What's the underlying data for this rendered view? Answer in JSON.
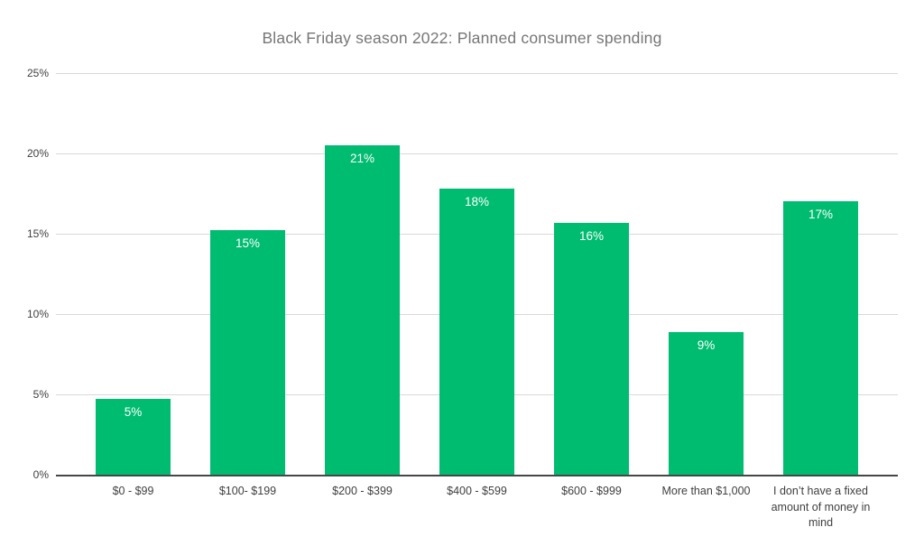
{
  "colors": {
    "bar_fill": "#00bc70",
    "bar_value_text": "#ffffff",
    "gridline": "#d9d9d9",
    "axis_line": "#464646",
    "axis_text": "#3f3f3f",
    "title_text": "#767676",
    "background": "#ffffff"
  },
  "chart_data": {
    "type": "bar",
    "title": "Black Friday season 2022: Planned consumer spending",
    "categories": [
      "$0 - $99",
      "$100- $199",
      "$200 - $399",
      "$400 - $599",
      "$600 - $999",
      "More than $1,000",
      "I don’t have a fixed amount of money in mind"
    ],
    "values": [
      4.7,
      15.2,
      20.5,
      17.8,
      15.7,
      8.9,
      17.0
    ],
    "data_labels": [
      "5%",
      "15%",
      "21%",
      "18%",
      "16%",
      "9%",
      "17%"
    ],
    "xlabel": "",
    "ylabel": "",
    "ylim": [
      0,
      25
    ],
    "ytick_step": 5,
    "yticks": [
      "0%",
      "5%",
      "10%",
      "15%",
      "20%",
      "25%"
    ],
    "grid": true,
    "legend": "none"
  }
}
